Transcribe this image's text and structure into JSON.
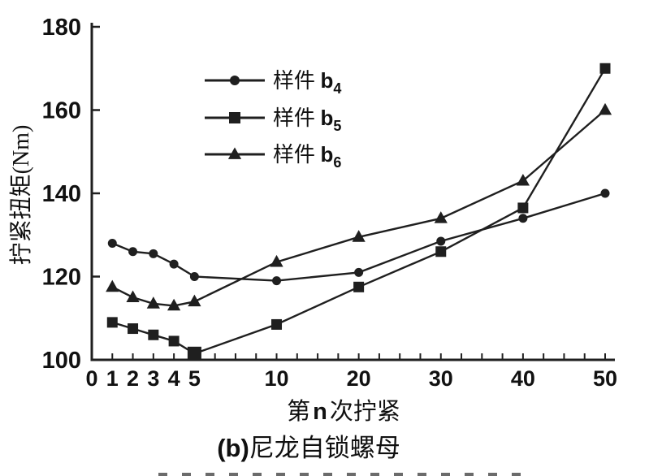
{
  "chart_data": {
    "type": "line",
    "title": "",
    "xlabel": {
      "prefix": "第",
      "variable": "n",
      "suffix": "次拧紧"
    },
    "ylabel": "拧紧扭矩(Nm)",
    "x_ticks": [
      0,
      1,
      2,
      3,
      4,
      5,
      10,
      20,
      30,
      40,
      50
    ],
    "y_ticks": [
      100,
      120,
      140,
      160,
      180
    ],
    "xlim": [
      0,
      50
    ],
    "ylim": [
      100,
      180
    ],
    "grid": false,
    "legend_position": "upper-left inside plot",
    "x_axis_note": "nonlinear tick spacing: 0-5 expanded, 5-10 medium, 10-50 compressed",
    "ink_color": "#1f1f1f",
    "x": [
      1,
      2,
      3,
      4,
      5,
      10,
      20,
      30,
      40,
      50
    ],
    "series": [
      {
        "label": "样件",
        "symbol": "b",
        "subscript": "4",
        "marker": "circle",
        "marker_size": 11,
        "values": [
          128,
          126,
          125.5,
          123,
          120,
          119,
          121,
          128.5,
          134,
          140
        ]
      },
      {
        "label": "样件",
        "symbol": "b",
        "subscript": "5",
        "marker": "square",
        "marker_size": 13,
        "size_overrides": {
          "4": 17
        },
        "values": [
          109,
          107.5,
          106,
          104.5,
          101.5,
          108.5,
          117.5,
          126,
          136.5,
          170
        ]
      },
      {
        "label": "样件",
        "symbol": "b",
        "subscript": "6",
        "marker": "triangle",
        "marker_size": 14,
        "values": [
          117.5,
          115,
          113.5,
          113,
          114,
          123.5,
          129.5,
          134,
          143,
          160
        ]
      }
    ]
  },
  "caption": {
    "prefix": "(b)",
    "text": "尼龙自锁螺母"
  }
}
